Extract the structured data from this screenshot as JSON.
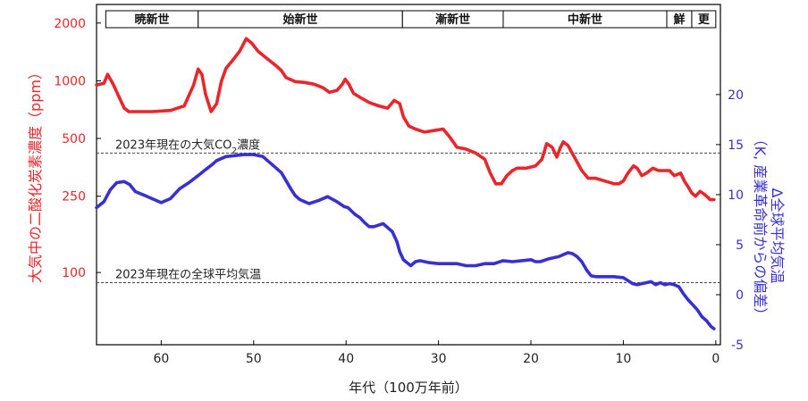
{
  "chart_data": {
    "type": "line",
    "xlabel": "年代（100万年前）",
    "x_ticks": [
      60,
      50,
      40,
      30,
      20,
      10,
      0
    ],
    "xlim": [
      67,
      -0.5
    ],
    "ylabel_left": "大気中の二酸化炭素濃度（ppm）",
    "yscale_left": "log",
    "y_ticks_left": [
      2000,
      1000,
      500,
      250,
      100
    ],
    "ylim_left": [
      42,
      2500
    ],
    "ylabel_right_line1": "Δ全球平均気温",
    "ylabel_right_line2": "（K, 産業革命前からの偏差）",
    "y_ticks_right": [
      20,
      15,
      10,
      5,
      0,
      -5
    ],
    "ylim_right": [
      -5,
      29
    ],
    "epochs": [
      {
        "name": "暁新世",
        "start": 66,
        "end": 56
      },
      {
        "name": "始新世",
        "start": 56,
        "end": 33.9
      },
      {
        "name": "漸新世",
        "start": 33.9,
        "end": 23
      },
      {
        "name": "中新世",
        "start": 23,
        "end": 5.3
      },
      {
        "name": "鮮",
        "start": 5.3,
        "end": 2.6
      },
      {
        "name": "更",
        "start": 2.6,
        "end": 0
      }
    ],
    "reference_lines": [
      {
        "label_pre": "2023年現在の大気CO",
        "label_sub": "2",
        "label_post": "濃度",
        "axis": "left",
        "value": 420
      },
      {
        "label_pre": "2023年現在の全球平均気温",
        "label_sub": "",
        "label_post": "",
        "axis": "right",
        "value": 1.2
      }
    ],
    "series": [
      {
        "axis": "left",
        "color": "#e8262b",
        "x": [
          67,
          66.2,
          65.8,
          65.2,
          64.6,
          64.0,
          63.5,
          62.5,
          61,
          59,
          57.5,
          56.5,
          56.0,
          55.6,
          55.2,
          54.6,
          54.0,
          53.5,
          53.0,
          52.2,
          51.5,
          50.8,
          50.2,
          49.5,
          48.5,
          47.5,
          47.0,
          46.5,
          45.5,
          44.5,
          43.5,
          42.5,
          41.8,
          41.0,
          40.4,
          40.1,
          39.7,
          39.2,
          38.5,
          37.5,
          36.5,
          35.5,
          34.8,
          34.2,
          33.8,
          33.2,
          32.5,
          31.5,
          30.5,
          29.5,
          28.8,
          28.0,
          27.0,
          26.0,
          25.0,
          24.4,
          23.8,
          23.2,
          22.6,
          22.0,
          21.5,
          20.5,
          19.5,
          18.8,
          18.3,
          17.7,
          17.2,
          16.8,
          16.5,
          16.0,
          15.3,
          14.5,
          13.8,
          13.0,
          12.0,
          11.0,
          10.5,
          10.0,
          9.5,
          8.9,
          8.5,
          8.0,
          7.5,
          6.8,
          6.2,
          5.5,
          5.0,
          4.5,
          3.8,
          3.4,
          3.0,
          2.6,
          2.2,
          1.7,
          1.2,
          0.6,
          0.2
        ],
        "values": [
          950,
          970,
          1080,
          960,
          830,
          720,
          690,
          690,
          690,
          700,
          740,
          950,
          1150,
          1080,
          850,
          690,
          760,
          990,
          1160,
          1290,
          1430,
          1660,
          1570,
          1420,
          1300,
          1190,
          1130,
          1040,
          990,
          980,
          960,
          920,
          870,
          890,
          960,
          1020,
          960,
          860,
          820,
          770,
          740,
          720,
          790,
          760,
          650,
          580,
          560,
          540,
          550,
          560,
          510,
          450,
          440,
          420,
          390,
          330,
          290,
          290,
          320,
          340,
          350,
          350,
          360,
          390,
          470,
          450,
          400,
          450,
          480,
          460,
          400,
          340,
          310,
          310,
          300,
          290,
          290,
          300,
          330,
          360,
          350,
          320,
          330,
          350,
          340,
          340,
          340,
          320,
          330,
          300,
          280,
          260,
          250,
          265,
          255,
          240,
          240
        ]
      },
      {
        "axis": "right",
        "color": "#3a2fd0",
        "x": [
          67,
          66.2,
          65.5,
          64.8,
          64.0,
          63.4,
          62.8,
          62.0,
          61.0,
          60.0,
          59.0,
          58.0,
          57.0,
          56.0,
          55.2,
          54.5,
          54.0,
          53.0,
          52.0,
          51.0,
          50.0,
          49.0,
          48.0,
          47.0,
          46.5,
          46.0,
          45.5,
          45.0,
          44.0,
          43.0,
          42.0,
          41.0,
          40.2,
          39.8,
          39.0,
          38.5,
          38.0,
          37.5,
          37.0,
          36.0,
          35.0,
          34.5,
          34.2,
          33.8,
          33.4,
          33.0,
          32.5,
          32.0,
          31.0,
          30.0,
          29.0,
          28.0,
          27.0,
          26.0,
          25.0,
          24.0,
          23.0,
          22.0,
          21.0,
          20.0,
          19.5,
          19.0,
          18.0,
          17.0,
          16.0,
          15.5,
          15.0,
          14.5,
          14.0,
          13.5,
          13.0,
          12.0,
          11.0,
          10.0,
          9.5,
          9.0,
          8.5,
          8.0,
          7.5,
          7.0,
          6.5,
          6.0,
          5.5,
          5.0,
          4.5,
          4.0,
          3.5,
          3.0,
          2.5,
          2.0,
          1.5,
          1.0,
          0.5,
          0.2
        ],
        "values": [
          8.7,
          9.3,
          10.5,
          11.2,
          11.3,
          11.0,
          10.3,
          10.0,
          9.6,
          9.2,
          9.6,
          10.6,
          11.2,
          11.9,
          12.5,
          13.0,
          13.4,
          13.8,
          13.9,
          14.0,
          14.0,
          13.8,
          13.0,
          12.2,
          11.4,
          10.6,
          9.9,
          9.5,
          9.1,
          9.4,
          9.8,
          9.3,
          8.8,
          8.7,
          8.0,
          7.7,
          7.2,
          6.8,
          6.8,
          7.1,
          6.3,
          5.3,
          4.3,
          3.5,
          3.2,
          2.9,
          3.3,
          3.4,
          3.2,
          3.1,
          3.1,
          3.1,
          2.9,
          2.9,
          3.1,
          3.1,
          3.4,
          3.3,
          3.4,
          3.5,
          3.3,
          3.3,
          3.6,
          3.8,
          4.2,
          4.1,
          3.8,
          3.3,
          2.5,
          1.9,
          1.8,
          1.8,
          1.8,
          1.7,
          1.4,
          1.1,
          1.0,
          1.1,
          1.2,
          1.3,
          1.0,
          1.2,
          1.0,
          1.1,
          1.0,
          0.8,
          0.1,
          -0.5,
          -1.0,
          -1.5,
          -2.2,
          -2.6,
          -3.2,
          -3.4
        ]
      }
    ]
  }
}
